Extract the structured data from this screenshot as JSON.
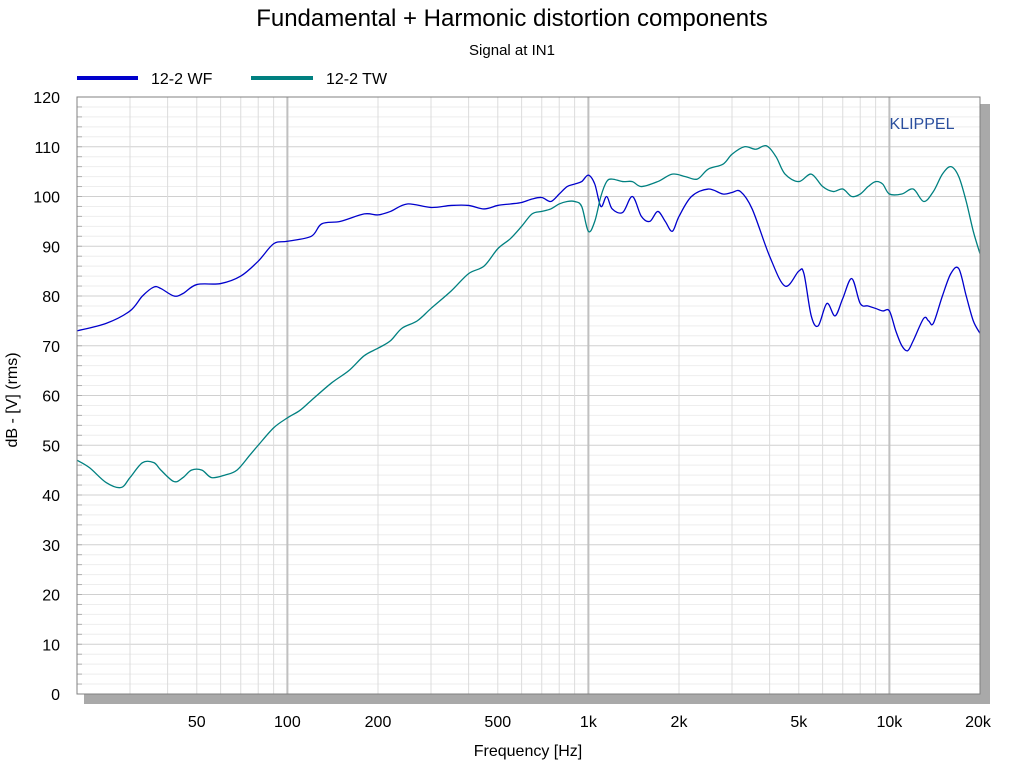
{
  "chart_data": {
    "type": "line",
    "title": "Fundamental + Harmonic distortion components",
    "subtitle": "Signal at IN1",
    "xlabel": "Frequency [Hz]",
    "ylabel": "dB - [V]  (rms)",
    "x_scale": "log",
    "xlim": [
      20,
      20000
    ],
    "ylim": [
      0,
      120
    ],
    "x_ticks": [
      50,
      100,
      200,
      500,
      1000,
      2000,
      5000,
      10000,
      20000
    ],
    "x_tick_labels": [
      "50",
      "100",
      "200",
      "500",
      "1k",
      "2k",
      "5k",
      "10k",
      "20k"
    ],
    "y_ticks": [
      0,
      10,
      20,
      30,
      40,
      50,
      60,
      70,
      80,
      90,
      100,
      110,
      120
    ],
    "y_tick_labels": [
      "0",
      "10",
      "20",
      "30",
      "40",
      "50",
      "60",
      "70",
      "80",
      "90",
      "100",
      "110",
      "120"
    ],
    "grid": true,
    "legend_position": "top-left",
    "watermark": "KLIPPEL",
    "series": [
      {
        "name": "12-2 WF",
        "color": "#0000cc",
        "points": [
          [
            20,
            73.0
          ],
          [
            25,
            74.5
          ],
          [
            30,
            77.0
          ],
          [
            33,
            80.0
          ],
          [
            36,
            81.8
          ],
          [
            38,
            81.5
          ],
          [
            42,
            80.0
          ],
          [
            45,
            80.5
          ],
          [
            50,
            82.3
          ],
          [
            60,
            82.5
          ],
          [
            70,
            84.0
          ],
          [
            80,
            87.0
          ],
          [
            90,
            90.5
          ],
          [
            100,
            91.0
          ],
          [
            120,
            92.0
          ],
          [
            130,
            94.5
          ],
          [
            150,
            95.0
          ],
          [
            180,
            96.5
          ],
          [
            200,
            96.3
          ],
          [
            220,
            97.0
          ],
          [
            250,
            98.5
          ],
          [
            300,
            97.8
          ],
          [
            350,
            98.2
          ],
          [
            400,
            98.2
          ],
          [
            450,
            97.5
          ],
          [
            500,
            98.2
          ],
          [
            550,
            98.5
          ],
          [
            600,
            98.8
          ],
          [
            650,
            99.5
          ],
          [
            700,
            99.8
          ],
          [
            750,
            99.0
          ],
          [
            800,
            100.5
          ],
          [
            850,
            102.0
          ],
          [
            900,
            102.5
          ],
          [
            950,
            103.0
          ],
          [
            1000,
            104.3
          ],
          [
            1050,
            102.5
          ],
          [
            1100,
            98.0
          ],
          [
            1150,
            100.0
          ],
          [
            1200,
            97.5
          ],
          [
            1300,
            96.8
          ],
          [
            1400,
            100.0
          ],
          [
            1500,
            96.0
          ],
          [
            1600,
            95.0
          ],
          [
            1700,
            97.0
          ],
          [
            1800,
            95.0
          ],
          [
            1900,
            93.0
          ],
          [
            2000,
            96.0
          ],
          [
            2200,
            100.0
          ],
          [
            2500,
            101.5
          ],
          [
            2800,
            100.5
          ],
          [
            3000,
            100.8
          ],
          [
            3200,
            101.0
          ],
          [
            3500,
            97.5
          ],
          [
            4000,
            88.0
          ],
          [
            4500,
            82.0
          ],
          [
            5000,
            85.0
          ],
          [
            5200,
            84.5
          ],
          [
            5500,
            76.0
          ],
          [
            5800,
            74.0
          ],
          [
            6200,
            78.5
          ],
          [
            6600,
            76.0
          ],
          [
            7000,
            79.5
          ],
          [
            7500,
            83.5
          ],
          [
            8000,
            78.5
          ],
          [
            8500,
            78.0
          ],
          [
            9000,
            77.5
          ],
          [
            9500,
            77.0
          ],
          [
            10000,
            77.0
          ],
          [
            10500,
            73.0
          ],
          [
            11000,
            70.0
          ],
          [
            11500,
            69.0
          ],
          [
            12000,
            71.0
          ],
          [
            13000,
            75.5
          ],
          [
            13500,
            75.0
          ],
          [
            14000,
            74.5
          ],
          [
            15000,
            80.0
          ],
          [
            16000,
            84.5
          ],
          [
            17000,
            85.5
          ],
          [
            18000,
            80.0
          ],
          [
            19000,
            75.0
          ],
          [
            20000,
            72.5
          ]
        ]
      },
      {
        "name": "12-2 TW",
        "color": "#008080",
        "points": [
          [
            20,
            47.0
          ],
          [
            22,
            45.5
          ],
          [
            25,
            42.5
          ],
          [
            28,
            41.5
          ],
          [
            30,
            43.5
          ],
          [
            33,
            46.5
          ],
          [
            36,
            46.5
          ],
          [
            38,
            45.0
          ],
          [
            42,
            42.7
          ],
          [
            45,
            43.5
          ],
          [
            48,
            45.0
          ],
          [
            52,
            45.0
          ],
          [
            56,
            43.5
          ],
          [
            62,
            44.0
          ],
          [
            68,
            45.0
          ],
          [
            75,
            48.0
          ],
          [
            80,
            50.0
          ],
          [
            90,
            53.5
          ],
          [
            100,
            55.5
          ],
          [
            110,
            57.0
          ],
          [
            120,
            59.0
          ],
          [
            140,
            62.5
          ],
          [
            160,
            65.0
          ],
          [
            180,
            68.0
          ],
          [
            200,
            69.5
          ],
          [
            220,
            71.0
          ],
          [
            240,
            73.5
          ],
          [
            270,
            75.0
          ],
          [
            300,
            77.5
          ],
          [
            350,
            81.0
          ],
          [
            400,
            84.5
          ],
          [
            450,
            86.0
          ],
          [
            500,
            89.5
          ],
          [
            550,
            91.5
          ],
          [
            600,
            94.0
          ],
          [
            650,
            96.5
          ],
          [
            700,
            97.0
          ],
          [
            750,
            97.5
          ],
          [
            800,
            98.5
          ],
          [
            850,
            99.0
          ],
          [
            900,
            99.0
          ],
          [
            950,
            98.0
          ],
          [
            1000,
            93.0
          ],
          [
            1050,
            95.0
          ],
          [
            1100,
            100.0
          ],
          [
            1150,
            103.0
          ],
          [
            1200,
            103.5
          ],
          [
            1300,
            103.0
          ],
          [
            1400,
            103.0
          ],
          [
            1500,
            102.0
          ],
          [
            1700,
            103.0
          ],
          [
            1900,
            104.5
          ],
          [
            2100,
            104.0
          ],
          [
            2300,
            103.5
          ],
          [
            2500,
            105.5
          ],
          [
            2800,
            106.5
          ],
          [
            3000,
            108.5
          ],
          [
            3300,
            110.0
          ],
          [
            3600,
            109.5
          ],
          [
            3900,
            110.2
          ],
          [
            4200,
            108.0
          ],
          [
            4500,
            104.5
          ],
          [
            5000,
            103.0
          ],
          [
            5500,
            104.5
          ],
          [
            6000,
            102.0
          ],
          [
            6500,
            101.0
          ],
          [
            7000,
            101.5
          ],
          [
            7500,
            100.0
          ],
          [
            8000,
            100.5
          ],
          [
            8500,
            102.0
          ],
          [
            9000,
            103.0
          ],
          [
            9500,
            102.5
          ],
          [
            10000,
            100.5
          ],
          [
            11000,
            100.5
          ],
          [
            12000,
            101.5
          ],
          [
            13000,
            99.0
          ],
          [
            14000,
            101.0
          ],
          [
            15000,
            104.5
          ],
          [
            16000,
            106.0
          ],
          [
            17000,
            104.0
          ],
          [
            18000,
            99.0
          ],
          [
            19000,
            93.0
          ],
          [
            20000,
            88.5
          ]
        ]
      }
    ]
  }
}
